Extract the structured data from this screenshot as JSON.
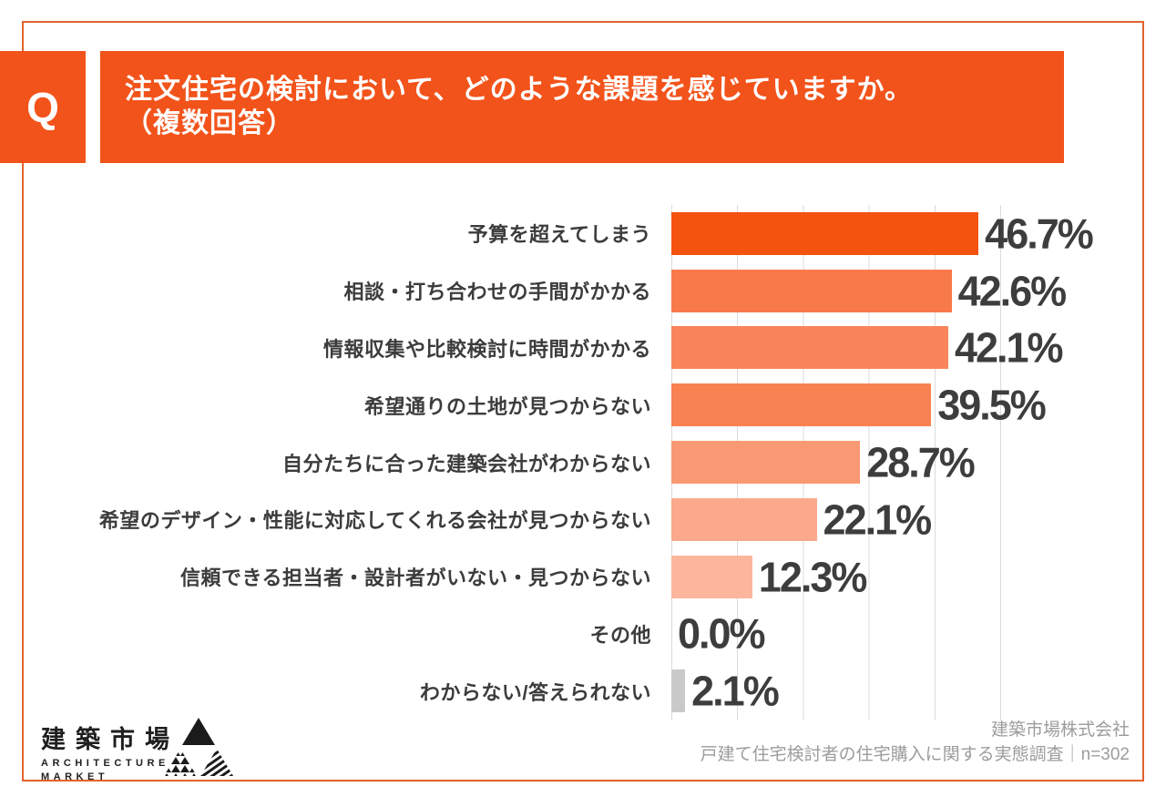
{
  "page": {
    "q_label": "Q",
    "title_line1": "注文住宅の検討において、どのような課題を感じていますか。",
    "title_line2": "（複数回答）",
    "accent_color": "#F2531A",
    "frame_color": "#E2622E"
  },
  "chart_data": {
    "type": "bar",
    "orientation": "horizontal",
    "unit": "%",
    "title": "注文住宅の検討において、どのような課題を感じていますか。（複数回答）",
    "axis": {
      "min": 0,
      "max": 50,
      "gridline_step": 10,
      "grid": true
    },
    "gridline_color": "#DBDBDB",
    "rows": [
      {
        "label": "予算を超えてしまう",
        "value": 46.7,
        "display": "46.7%",
        "color": "#F4520F"
      },
      {
        "label": "相談・打ち合わせの手間がかかる",
        "value": 42.6,
        "display": "42.6%",
        "color": "#F87A4B"
      },
      {
        "label": "情報収集や比較検討に時間がかかる",
        "value": 42.1,
        "display": "42.1%",
        "color": "#F8865A"
      },
      {
        "label": "希望通りの土地が見つからない",
        "value": 39.5,
        "display": "39.5%",
        "color": "#F88251"
      },
      {
        "label": "自分たちに合った建築会社がわからない",
        "value": 28.7,
        "display": "28.7%",
        "color": "#F99974"
      },
      {
        "label": "希望のデザイン・性能に対応してくれる会社が見つからない",
        "value": 22.1,
        "display": "22.1%",
        "color": "#FAAA8A"
      },
      {
        "label": "信頼できる担当者・設計者がいない・見つからない",
        "value": 12.3,
        "display": "12.3%",
        "color": "#FBB69D"
      },
      {
        "label": "その他",
        "value": 0.0,
        "display": "0.0%",
        "color": "#C9C9C9"
      },
      {
        "label": "わからない/答えられない",
        "value": 2.1,
        "display": "2.1%",
        "color": "#C9C9C9"
      }
    ]
  },
  "footer": {
    "logo": {
      "jp": "建築市場",
      "en_line1": "ARCHITECTURE",
      "en_line2": "MARKET",
      "mark": "triangle-logo"
    },
    "source_line1": "建築市場株式会社",
    "source_line2": "戸建て住宅検討者の住宅購入に関する実態調査｜n=302"
  }
}
